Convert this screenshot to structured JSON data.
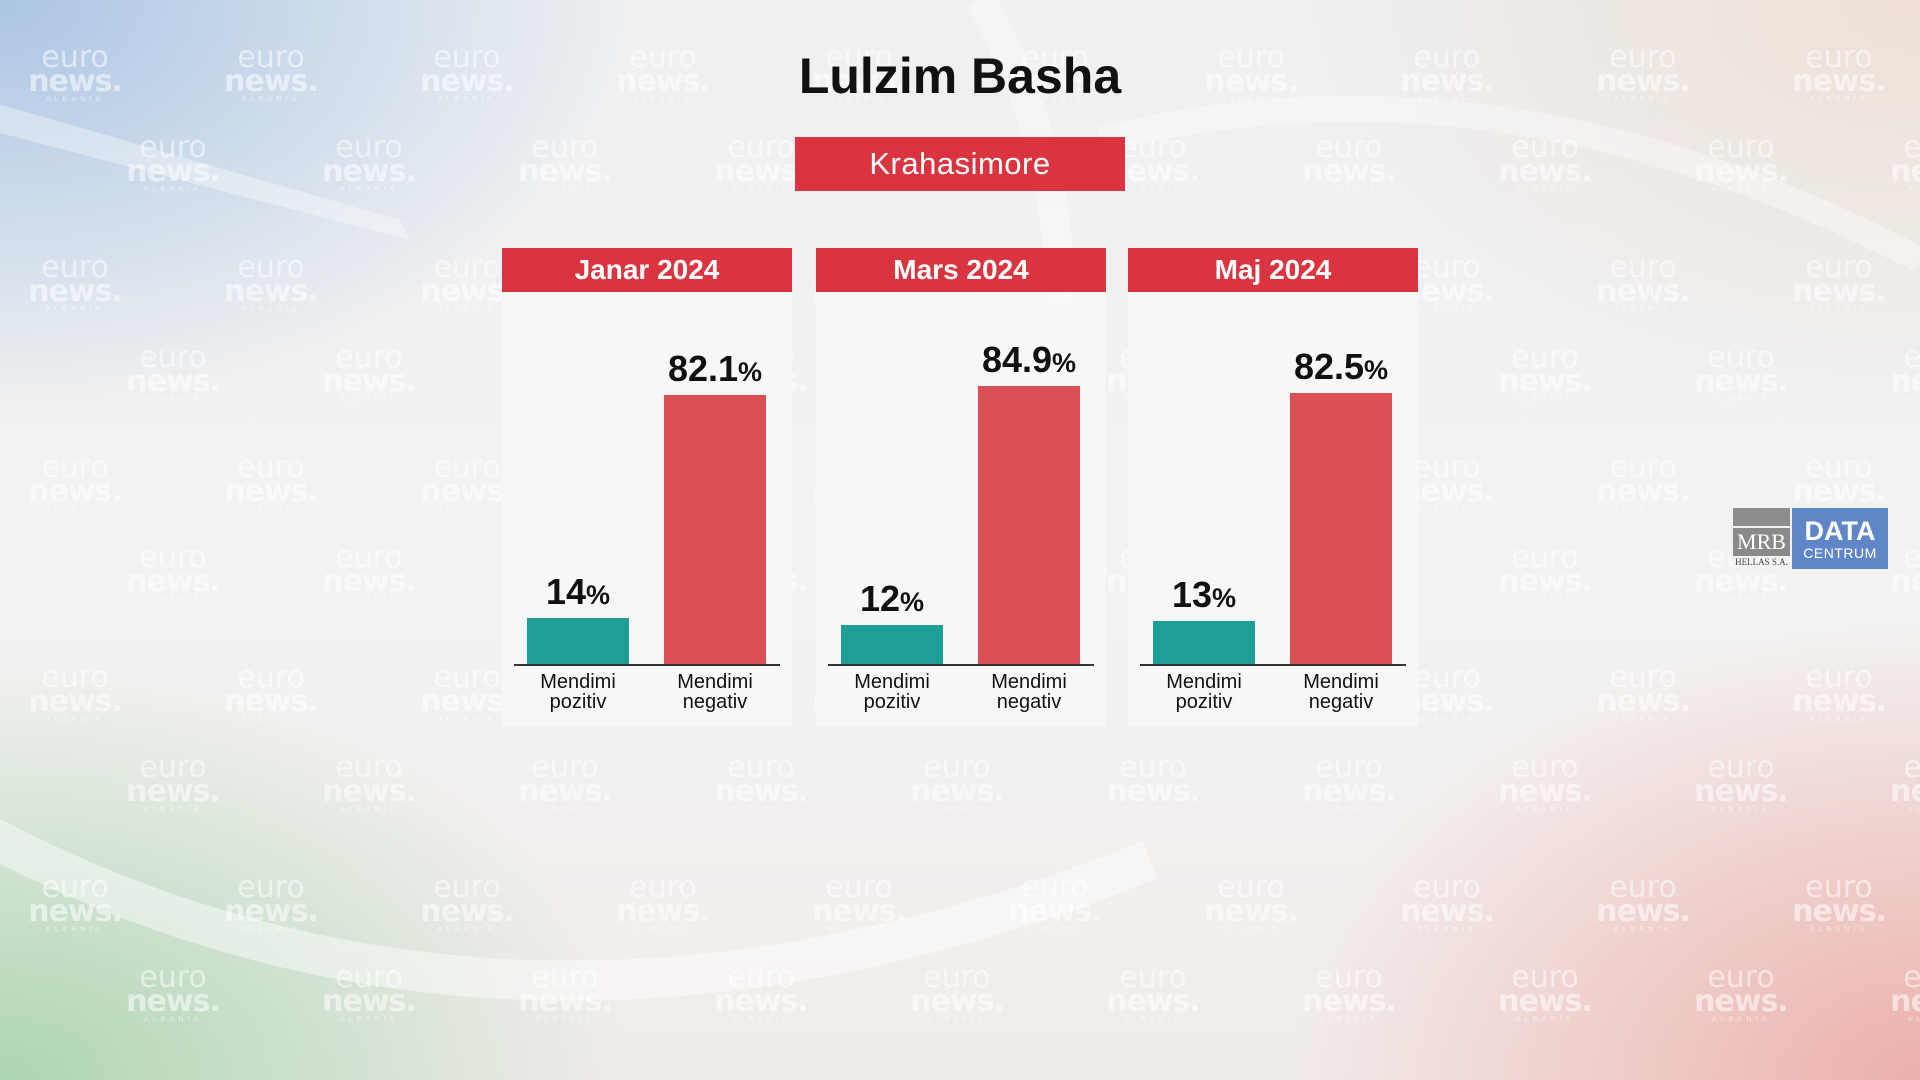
{
  "title": "Lulzim Basha",
  "subtitle": "Krahasimore",
  "watermark": {
    "line1": "euro",
    "line2": "news.",
    "line3": "ALBANIA"
  },
  "logo": {
    "left_text": "MRB",
    "left_subtext": "HELLAS S.A.",
    "right_text": "DATA",
    "right_subtext": "CENTRUM"
  },
  "colors": {
    "positive": "#1f9e98",
    "negative": "#dc4f55",
    "header_red": "#d9343f"
  },
  "chart_data": [
    {
      "type": "bar",
      "title": "Janar 2024",
      "categories": [
        "Mendimi pozitiv",
        "Mendimi negativ"
      ],
      "category_lines": [
        [
          "Mendimi",
          "pozitiv"
        ],
        [
          "Mendimi",
          "negativ"
        ]
      ],
      "values": [
        14,
        82.1
      ],
      "value_labels": [
        "14",
        "82.1"
      ],
      "unit": "%",
      "ylim": [
        0,
        100
      ]
    },
    {
      "type": "bar",
      "title": "Mars 2024",
      "categories": [
        "Mendimi pozitiv",
        "Mendimi negativ"
      ],
      "category_lines": [
        [
          "Mendimi",
          "pozitiv"
        ],
        [
          "Mendimi",
          "negativ"
        ]
      ],
      "values": [
        12,
        84.9
      ],
      "value_labels": [
        "12",
        "84.9"
      ],
      "unit": "%",
      "ylim": [
        0,
        100
      ]
    },
    {
      "type": "bar",
      "title": "Maj 2024",
      "categories": [
        "Mendimi pozitiv",
        "Mendimi negativ"
      ],
      "category_lines": [
        [
          "Mendimi",
          "pozitiv"
        ],
        [
          "Mendimi",
          "negativ"
        ]
      ],
      "values": [
        13,
        82.5
      ],
      "value_labels": [
        "13",
        "82.5"
      ],
      "unit": "%",
      "ylim": [
        0,
        100
      ]
    }
  ]
}
